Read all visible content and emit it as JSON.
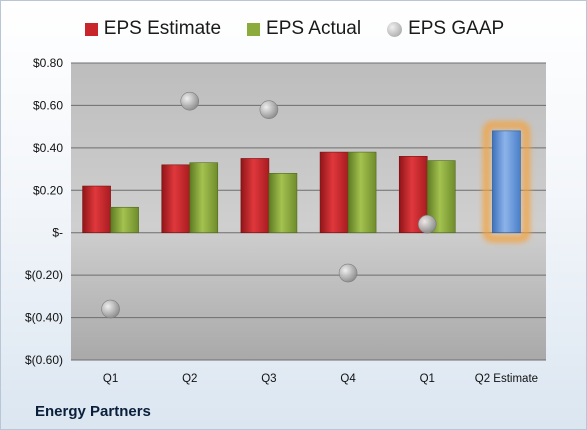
{
  "company": "Energy Partners",
  "chart_data": {
    "type": "bar",
    "categories": [
      "Q1",
      "Q2",
      "Q3",
      "Q4",
      "Q1",
      "Q2 Estimate"
    ],
    "series": [
      {
        "name": "EPS Estimate",
        "values": [
          0.22,
          0.32,
          0.35,
          0.38,
          0.36,
          null
        ],
        "color": "#c8262b"
      },
      {
        "name": "EPS Actual",
        "values": [
          0.12,
          0.33,
          0.28,
          0.38,
          0.34,
          null
        ],
        "color": "#8bab3c"
      },
      {
        "name": "EPS GAAP",
        "type": "scatter",
        "values": [
          -0.36,
          0.62,
          0.58,
          -0.19,
          0.04,
          null
        ],
        "color": "#a8a8a8"
      }
    ],
    "highlight": {
      "category": "Q2 Estimate",
      "value": 0.48,
      "color": "#5b8fd4",
      "glow": "#f4a23c"
    },
    "ylim": [
      -0.6,
      0.8
    ],
    "yticks": [
      {
        "value": 0.8,
        "label": "$0.80"
      },
      {
        "value": 0.6,
        "label": "$0.60"
      },
      {
        "value": 0.4,
        "label": "$0.40"
      },
      {
        "value": 0.2,
        "label": "$0.20"
      },
      {
        "value": 0,
        "label": "$-"
      },
      {
        "value": -0.2,
        "label": "$(0.20)"
      },
      {
        "value": -0.4,
        "label": "$(0.40)"
      },
      {
        "value": -0.6,
        "label": "$(0.60)"
      }
    ],
    "grid": true,
    "legend_position": "top"
  }
}
